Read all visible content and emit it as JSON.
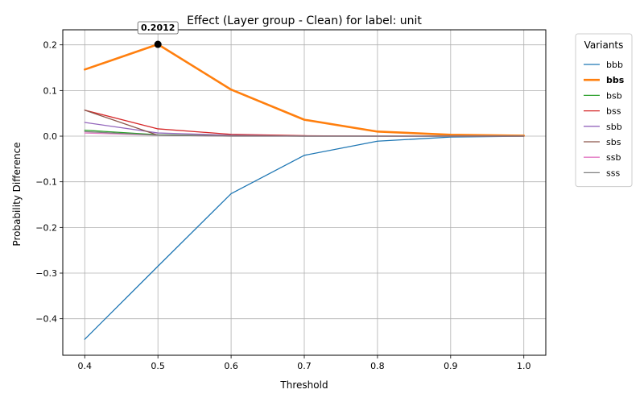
{
  "chart_data": {
    "type": "line",
    "title": "Effect (Layer group - Clean) for label: unit",
    "xlabel": "Threshold",
    "ylabel": "Probability Difference",
    "xlim": [
      0.37,
      1.03
    ],
    "ylim": [
      -0.48,
      0.233
    ],
    "xticks": [
      0.4,
      0.5,
      0.6,
      0.7,
      0.8,
      0.9,
      1.0
    ],
    "xtick_labels": [
      "0.4",
      "0.5",
      "0.6",
      "0.7",
      "0.8",
      "0.9",
      "1.0"
    ],
    "yticks": [
      -0.4,
      -0.3,
      -0.2,
      -0.1,
      0.0,
      0.1,
      0.2
    ],
    "ytick_labels": [
      "−0.4",
      "−0.3",
      "−0.2",
      "−0.1",
      "0.0",
      "0.1",
      "0.2"
    ],
    "grid": true,
    "legend": {
      "title": "Variants",
      "placement": "outside-right-top"
    },
    "x": [
      0.4,
      0.5,
      0.6,
      0.7,
      0.8,
      0.9,
      1.0
    ],
    "series": [
      {
        "name": "bbb",
        "color": "#1f77b4",
        "highlight": false,
        "values": [
          -0.445,
          -0.285,
          -0.126,
          -0.042,
          -0.011,
          -0.002,
          0.0
        ]
      },
      {
        "name": "bbs",
        "color": "#ff7f0e",
        "highlight": true,
        "values": [
          0.146,
          0.2012,
          0.102,
          0.036,
          0.01,
          0.003,
          0.001
        ]
      },
      {
        "name": "bsb",
        "color": "#2ca02c",
        "highlight": false,
        "values": [
          0.013,
          0.003,
          0.001,
          0.0,
          0.0,
          0.0,
          0.0
        ]
      },
      {
        "name": "bss",
        "color": "#d62728",
        "highlight": false,
        "values": [
          0.057,
          0.016,
          0.004,
          0.001,
          0.0,
          0.0,
          0.0
        ]
      },
      {
        "name": "sbb",
        "color": "#9467bd",
        "highlight": false,
        "values": [
          0.03,
          0.007,
          0.002,
          0.0,
          0.0,
          0.0,
          0.0
        ]
      },
      {
        "name": "sbs",
        "color": "#8c564b",
        "highlight": false,
        "values": [
          0.057,
          0.002,
          0.001,
          0.0,
          0.0,
          0.0,
          0.0
        ]
      },
      {
        "name": "ssb",
        "color": "#e377c2",
        "highlight": false,
        "values": [
          0.007,
          0.002,
          0.0,
          0.0,
          0.0,
          0.0,
          0.0
        ]
      },
      {
        "name": "sss",
        "color": "#7f7f7f",
        "highlight": false,
        "values": [
          0.01,
          0.002,
          0.0,
          0.0,
          0.0,
          0.0,
          0.0
        ]
      }
    ],
    "annotation": {
      "series": "bbs",
      "x": 0.5,
      "y": 0.2012,
      "label": "0.2012"
    }
  }
}
